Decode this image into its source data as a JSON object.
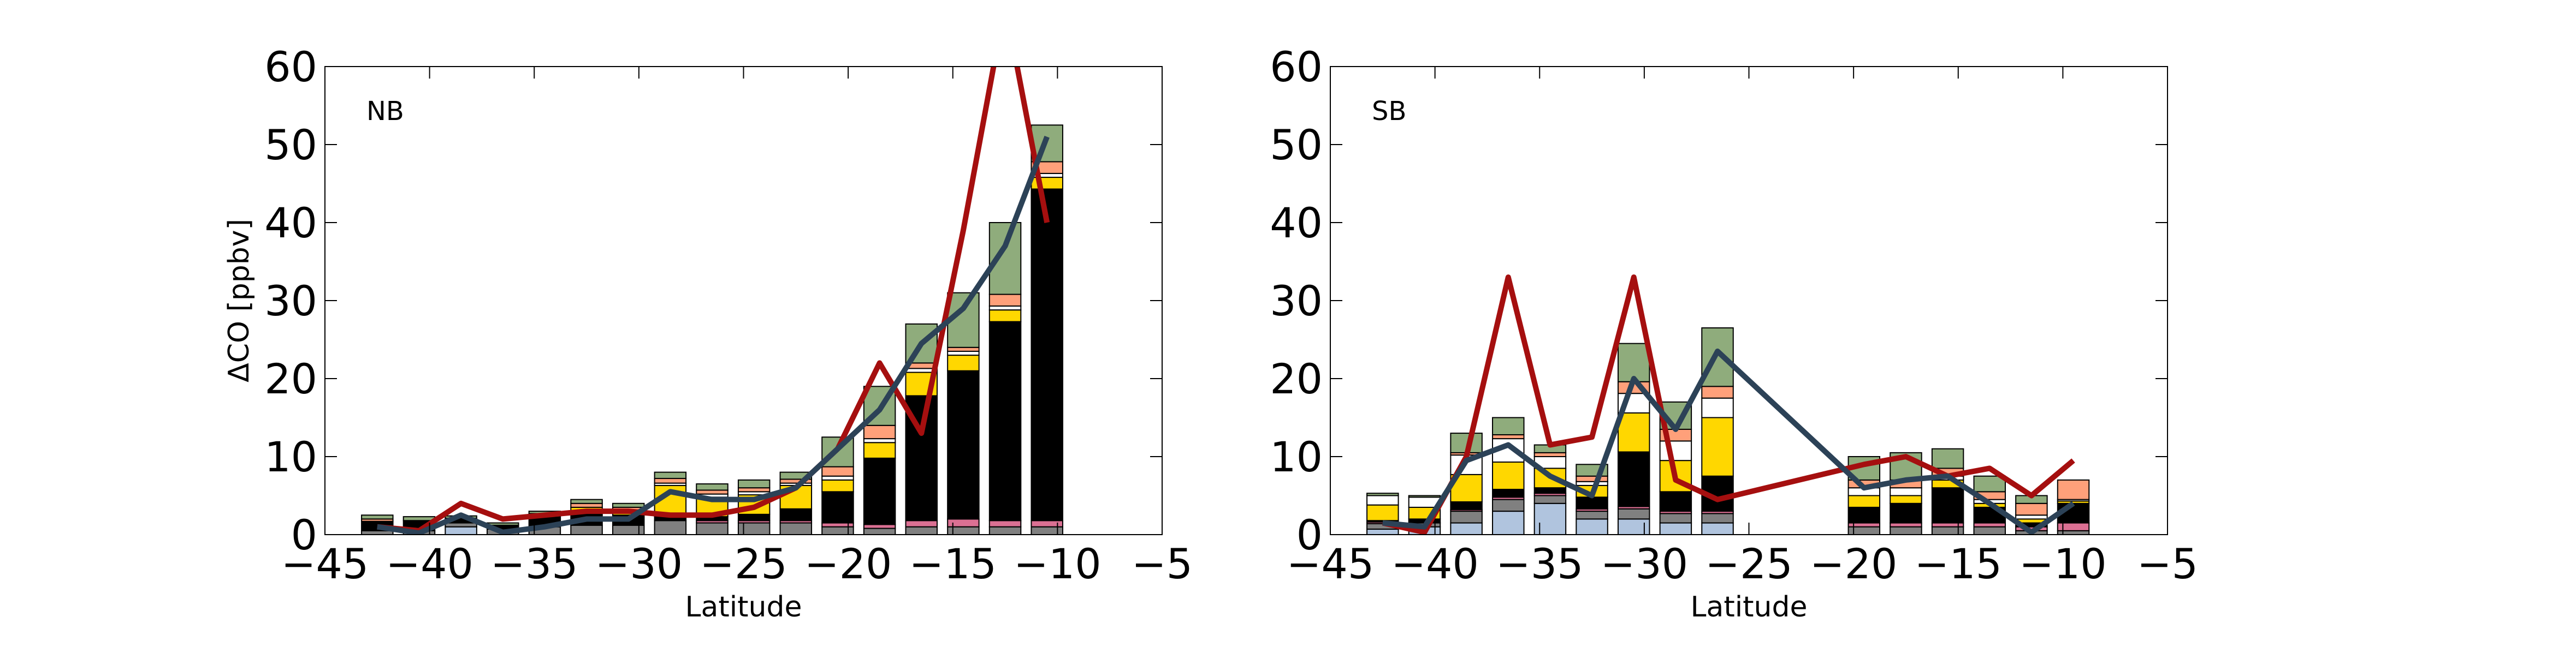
{
  "chart_data": [
    {
      "type": "stacked-bar-line",
      "label": "NB",
      "xlabel": "Latitude",
      "ylabel": "ΔCO [ppbv]",
      "x": [
        -42.5,
        -40.5,
        -38.5,
        -36.5,
        -34.5,
        -32.5,
        -30.5,
        -28.5,
        -26.5,
        -24.5,
        -22.5,
        -20.5,
        -18.5,
        -16.5,
        -14.5,
        -12.5,
        -10.5
      ],
      "xlim": [
        -45,
        -5
      ],
      "xticks": [
        {
          "value": -45,
          "label": "−45"
        },
        {
          "value": -40,
          "label": "−40"
        },
        {
          "value": -35,
          "label": "−35"
        },
        {
          "value": -30,
          "label": "−30"
        },
        {
          "value": -25,
          "label": "−25"
        },
        {
          "value": -20,
          "label": "−20"
        },
        {
          "value": -15,
          "label": "−15"
        },
        {
          "value": -10,
          "label": "−10"
        },
        {
          "value": -5,
          "label": "−5"
        }
      ],
      "ylim": [
        0,
        60
      ],
      "yticks": [
        0,
        10,
        20,
        30,
        40,
        50,
        60
      ],
      "series": [
        {
          "color": "#b0c4de",
          "values": [
            0,
            0,
            1,
            0,
            0,
            0,
            0,
            0,
            0,
            0,
            0,
            0,
            0,
            0,
            0,
            0,
            0
          ]
        },
        {
          "color": "#808080",
          "values": [
            0.5,
            0.5,
            0.5,
            0.7,
            1,
            1.2,
            1.2,
            1.8,
            1.5,
            1.5,
            1.5,
            1,
            0.8,
            1,
            1,
            1,
            1
          ]
        },
        {
          "color": "#db7093",
          "values": [
            0,
            0,
            0,
            0,
            0,
            0,
            0,
            0,
            0.3,
            0.3,
            0.3,
            0.5,
            0.5,
            0.8,
            1,
            0.8,
            0.8
          ]
        },
        {
          "color": "#000000",
          "values": [
            1.2,
            1.3,
            0.6,
            0.5,
            1.4,
            1.5,
            1.3,
            0.5,
            0.5,
            0.8,
            1.5,
            4,
            8.5,
            16,
            19,
            25.5,
            42.5
          ]
        },
        {
          "color": "#ffd700",
          "values": [
            0,
            0,
            0,
            0,
            0,
            0.8,
            0.5,
            4,
            2.5,
            2.5,
            3,
            1.5,
            2,
            3,
            2,
            1.5,
            1.5
          ]
        },
        {
          "color": "#ffffff",
          "values": [
            0,
            0,
            0,
            0,
            0,
            0,
            0,
            0.3,
            0.4,
            0.4,
            0.3,
            0.5,
            0.5,
            0.5,
            0.5,
            0.5,
            0.5
          ]
        },
        {
          "color": "#ffa07a",
          "values": [
            0.3,
            0,
            0,
            0,
            0.3,
            0.5,
            0.5,
            0.6,
            0.5,
            0.5,
            0.5,
            1.2,
            1.7,
            0.7,
            0.5,
            1.5,
            1.5
          ]
        },
        {
          "color": "#8fac7c",
          "values": [
            0.5,
            0.5,
            0.3,
            0.3,
            0.3,
            0.5,
            0.5,
            0.8,
            0.8,
            1,
            0.9,
            3.8,
            5,
            5,
            7,
            9.2,
            4.7
          ]
        }
      ],
      "lines": [
        {
          "color": "#a50f0f",
          "values": [
            1,
            0.5,
            4,
            2,
            2.5,
            3,
            3,
            2.5,
            2.5,
            3.5,
            6,
            11,
            22,
            13,
            39,
            68,
            40
          ]
        },
        {
          "color": "#2c4257",
          "values": [
            1,
            0.2,
            2.5,
            0.3,
            1,
            2,
            2,
            5.5,
            4.5,
            4.5,
            6,
            11,
            16,
            24.5,
            29,
            37,
            51
          ]
        }
      ]
    },
    {
      "type": "stacked-bar-line",
      "label": "SB",
      "xlabel": "Latitude",
      "x": [
        -42.5,
        -40.5,
        -38.5,
        -36.5,
        -34.5,
        -32.5,
        -30.5,
        -28.5,
        -26.5,
        -19.5,
        -17.5,
        -15.5,
        -13.5,
        -11.5,
        -9.5
      ],
      "xlim": [
        -45,
        -5
      ],
      "xticks": [
        {
          "value": -45,
          "label": "−45"
        },
        {
          "value": -40,
          "label": "−40"
        },
        {
          "value": -35,
          "label": "−35"
        },
        {
          "value": -30,
          "label": "−30"
        },
        {
          "value": -25,
          "label": "−25"
        },
        {
          "value": -20,
          "label": "−20"
        },
        {
          "value": -15,
          "label": "−15"
        },
        {
          "value": -10,
          "label": "−10"
        },
        {
          "value": -5,
          "label": "−5"
        }
      ],
      "ylim": [
        0,
        60
      ],
      "yticks": [
        0,
        10,
        20,
        30,
        40,
        50,
        60
      ],
      "series": [
        {
          "color": "#b0c4de",
          "values": [
            0.7,
            1,
            1.5,
            3,
            4,
            2,
            2,
            1.5,
            1.5,
            0,
            0,
            0,
            0,
            0,
            0
          ]
        },
        {
          "color": "#808080",
          "values": [
            0.7,
            0.5,
            1.5,
            1.5,
            1,
            1,
            1.3,
            1.2,
            1.2,
            1,
            1,
            1,
            1,
            0.5,
            0.5
          ]
        },
        {
          "color": "#db7093",
          "values": [
            0.2,
            0,
            0.2,
            0.3,
            0.3,
            0.3,
            0.3,
            0.3,
            0.3,
            0.5,
            0.5,
            0.5,
            0.5,
            0.5,
            1
          ]
        },
        {
          "color": "#000000",
          "values": [
            0.2,
            0.5,
            1,
            1,
            0.7,
            1.5,
            7,
            2.5,
            4.5,
            2,
            2.5,
            4.5,
            2,
            0.5,
            2.5
          ]
        },
        {
          "color": "#ffd700",
          "values": [
            2,
            1.5,
            3.5,
            3.5,
            2.5,
            1.5,
            5,
            4,
            7.5,
            1.5,
            1,
            1,
            0.5,
            0.5,
            0.3
          ]
        },
        {
          "color": "#ffffff",
          "values": [
            1.2,
            1.3,
            2.5,
            3,
            1.5,
            0.5,
            2.5,
            2.5,
            2.5,
            1,
            1,
            0.5,
            0.5,
            0.5,
            0.2
          ]
        },
        {
          "color": "#ffa07a",
          "values": [
            0,
            0,
            0.3,
            0.5,
            0.5,
            0.7,
            1.5,
            1.5,
            1.5,
            1,
            1,
            1,
            1,
            1.5,
            2.5
          ]
        },
        {
          "color": "#8fac7c",
          "values": [
            0.3,
            0.2,
            2.5,
            2.2,
            1,
            1.5,
            4.9,
            3.5,
            7.5,
            3,
            3.5,
            2.5,
            2,
            1,
            0
          ]
        }
      ],
      "lines": [
        {
          "color": "#a50f0f",
          "values": [
            1.5,
            0.3,
            10,
            33,
            11.5,
            12.5,
            33,
            7,
            4.5,
            9,
            10,
            7.5,
            8.5,
            5,
            9.5
          ]
        },
        {
          "color": "#2c4257",
          "values": [
            1.5,
            1,
            9.5,
            11.5,
            7.5,
            5,
            20,
            13.5,
            23.5,
            6,
            7,
            7.5,
            4,
            0.3,
            4
          ]
        }
      ]
    }
  ]
}
